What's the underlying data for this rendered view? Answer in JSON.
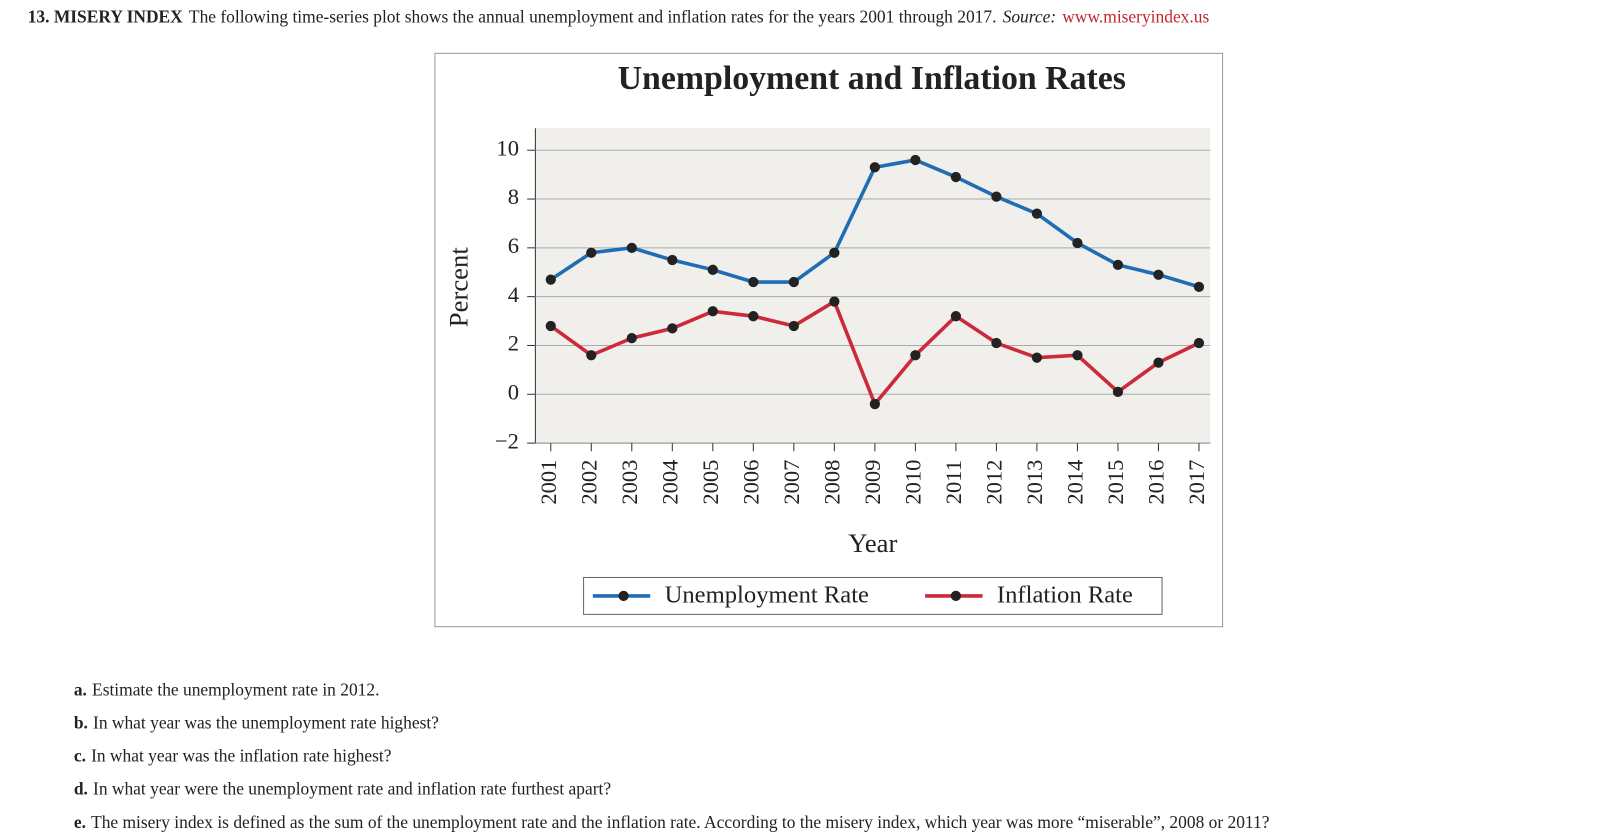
{
  "header": {
    "label": "13. MISERY INDEX",
    "text": "The following time-series plot shows the annual unemployment and inflation rates for the years 2001 through 2017.",
    "source_label": "Source:",
    "source": "www.miseryindex.us"
  },
  "chart_data": {
    "type": "line",
    "title": "Unemployment and Inflation Rates",
    "x_label": "Year",
    "y_label": "Percent",
    "categories": [
      "2001",
      "2002",
      "2003",
      "2004",
      "2005",
      "2006",
      "2007",
      "2008",
      "2009",
      "2010",
      "2011",
      "2012",
      "2013",
      "2014",
      "2015",
      "2016",
      "2017"
    ],
    "series": [
      {
        "name": "Unemployment Rate",
        "color": "#1f6db5",
        "values": [
          4.7,
          5.8,
          6.0,
          5.5,
          5.1,
          4.6,
          4.6,
          5.8,
          9.3,
          9.6,
          8.9,
          8.1,
          7.4,
          6.2,
          5.3,
          4.9,
          4.4
        ]
      },
      {
        "name": "Inflation Rate",
        "color": "#cc2a3a",
        "values": [
          2.8,
          1.6,
          2.3,
          2.7,
          3.4,
          3.2,
          2.8,
          3.8,
          -0.4,
          1.6,
          3.2,
          2.1,
          1.5,
          1.6,
          0.1,
          1.3,
          2.1
        ]
      }
    ],
    "ylim": [
      -2,
      10.9
    ],
    "yticks": [
      {
        "value": -2,
        "label": "−2"
      },
      0,
      2,
      4,
      6,
      8,
      10
    ],
    "grid": true,
    "legend": "bottom"
  },
  "questions": [
    {
      "letter": "a.",
      "text": "Estimate the unemployment rate in 2012."
    },
    {
      "letter": "b.",
      "text": "In what year was the unemployment rate highest?"
    },
    {
      "letter": "c.",
      "text": "In what year was the inflation rate highest?"
    },
    {
      "letter": "d.",
      "text": "In what year were the unemployment rate and inflation rate furthest apart?"
    },
    {
      "letter": "e.",
      "text": "The misery index is defined as the sum of the unemployment rate and the inflation rate. According to the misery index, which year was more “miserable”, 2008 or 2011?"
    }
  ]
}
